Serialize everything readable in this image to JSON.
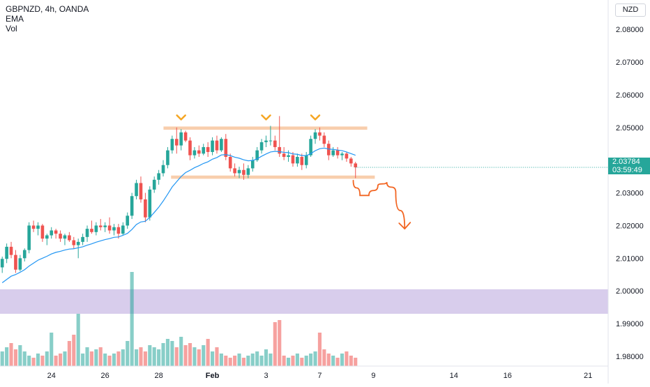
{
  "header": {
    "symbol_line": "GBPNZD, 4h, OANDA",
    "indicator_1": "EMA",
    "indicator_2": "Vol",
    "currency_label": "NZD"
  },
  "price_badge": {
    "price": "2.03784",
    "countdown": "03:59:49"
  },
  "colors": {
    "bull": "#26a69a",
    "bear": "#ef5350",
    "ema": "#2196f3",
    "zone": "#f7c59f",
    "purple_zone": "#d1c4e9",
    "marker": "#f5a623",
    "arrow": "#f26522"
  },
  "chart_data": {
    "type": "candlestick",
    "symbol": "GBPNZD",
    "timeframe": "4h",
    "source": "OANDA",
    "ylim": [
      1.977,
      2.089
    ],
    "y_ticks": [
      "2.08000",
      "2.07000",
      "2.06000",
      "2.05000",
      "2.04000",
      "2.03000",
      "2.02000",
      "2.01000",
      "2.00000",
      "1.99000",
      "1.98000"
    ],
    "x_ticks": [
      {
        "label": "24",
        "bar": 11
      },
      {
        "label": "26",
        "bar": 23
      },
      {
        "label": "28",
        "bar": 35
      },
      {
        "label": "Feb",
        "bar": 47
      },
      {
        "label": "3",
        "bar": 59
      },
      {
        "label": "7",
        "bar": 71
      },
      {
        "label": "9",
        "bar": 83
      },
      {
        "label": "14",
        "bar": 101
      },
      {
        "label": "16",
        "bar": 113
      },
      {
        "label": "21",
        "bar": 131
      }
    ],
    "total_slots": 136,
    "candles": [
      [
        2.0072,
        2.0105,
        2.0055,
        2.0098
      ],
      [
        2.0098,
        2.0145,
        2.0085,
        2.0135
      ],
      [
        2.0135,
        2.015,
        2.01,
        2.011
      ],
      [
        2.011,
        2.0125,
        2.0055,
        2.0065
      ],
      [
        2.0065,
        2.011,
        2.006,
        2.01
      ],
      [
        2.01,
        2.013,
        2.009,
        2.0125
      ],
      [
        2.0125,
        2.021,
        2.0115,
        2.02
      ],
      [
        2.02,
        2.0215,
        2.018,
        2.019
      ],
      [
        2.019,
        2.021,
        2.017,
        2.02
      ],
      [
        2.02,
        2.0205,
        2.015,
        2.016
      ],
      [
        2.016,
        2.0175,
        2.014,
        2.017
      ],
      [
        2.017,
        2.0195,
        2.016,
        2.0185
      ],
      [
        2.0185,
        2.019,
        2.016,
        2.0175
      ],
      [
        2.0175,
        2.0185,
        2.015,
        2.016
      ],
      [
        2.016,
        2.0175,
        2.014,
        2.017
      ],
      [
        2.017,
        2.018,
        2.015,
        2.0155
      ],
      [
        2.0155,
        2.0165,
        2.013,
        2.014
      ],
      [
        2.014,
        2.016,
        2.01,
        2.015
      ],
      [
        2.015,
        2.0175,
        2.014,
        2.0165
      ],
      [
        2.0165,
        2.02,
        2.015,
        2.019
      ],
      [
        2.019,
        2.0215,
        2.0175,
        2.018
      ],
      [
        2.018,
        2.021,
        2.017,
        2.02
      ],
      [
        2.02,
        2.022,
        2.0185,
        2.0195
      ],
      [
        2.0195,
        2.021,
        2.018,
        2.02
      ],
      [
        2.02,
        2.0225,
        2.0175,
        2.0185
      ],
      [
        2.0185,
        2.0205,
        2.017,
        2.0195
      ],
      [
        2.0195,
        2.0205,
        2.016,
        2.0175
      ],
      [
        2.0175,
        2.021,
        2.017,
        2.02
      ],
      [
        2.02,
        2.024,
        2.019,
        2.023
      ],
      [
        2.023,
        2.03,
        2.022,
        2.029
      ],
      [
        2.029,
        2.034,
        2.028,
        2.033
      ],
      [
        2.033,
        2.035,
        2.027,
        2.028
      ],
      [
        2.028,
        2.03,
        2.021,
        2.0225
      ],
      [
        2.0225,
        2.032,
        2.0215,
        2.031
      ],
      [
        2.031,
        2.035,
        2.03,
        2.034
      ],
      [
        2.034,
        2.037,
        2.0325,
        2.036
      ],
      [
        2.036,
        2.04,
        2.035,
        2.0385
      ],
      [
        2.0385,
        2.044,
        2.0375,
        2.043
      ],
      [
        2.043,
        2.0475,
        2.042,
        2.0465
      ],
      [
        2.0465,
        2.05,
        2.042,
        2.0445
      ],
      [
        2.0445,
        2.0495,
        2.043,
        2.0485
      ],
      [
        2.0485,
        2.049,
        2.0455,
        2.046
      ],
      [
        2.046,
        2.047,
        2.04,
        2.0415
      ],
      [
        2.0415,
        2.044,
        2.0405,
        2.043
      ],
      [
        2.043,
        2.0445,
        2.041,
        2.042
      ],
      [
        2.042,
        2.045,
        2.0415,
        2.044
      ],
      [
        2.044,
        2.0455,
        2.041,
        2.0425
      ],
      [
        2.0425,
        2.047,
        2.0415,
        2.046
      ],
      [
        2.046,
        2.0475,
        2.042,
        2.043
      ],
      [
        2.043,
        2.047,
        2.0425,
        2.0465
      ],
      [
        2.0465,
        2.048,
        2.04,
        2.041
      ],
      [
        2.041,
        2.042,
        2.0365,
        2.0375
      ],
      [
        2.0375,
        2.039,
        2.035,
        2.036
      ],
      [
        2.036,
        2.038,
        2.0345,
        2.037
      ],
      [
        2.037,
        2.039,
        2.034,
        2.0355
      ],
      [
        2.0355,
        2.0385,
        2.0345,
        2.0375
      ],
      [
        2.0375,
        2.041,
        2.0365,
        2.04
      ],
      [
        2.04,
        2.044,
        2.0395,
        2.043
      ],
      [
        2.043,
        2.0465,
        2.042,
        2.0455
      ],
      [
        2.0455,
        2.0475,
        2.044,
        2.046
      ],
      [
        2.046,
        2.0505,
        2.0445,
        2.046
      ],
      [
        2.046,
        2.0475,
        2.043,
        2.044
      ],
      [
        2.044,
        2.0535,
        2.041,
        2.042
      ],
      [
        2.042,
        2.044,
        2.04,
        2.041
      ],
      [
        2.041,
        2.043,
        2.0395,
        2.0415
      ],
      [
        2.0415,
        2.0425,
        2.038,
        2.039
      ],
      [
        2.039,
        2.042,
        2.038,
        2.041
      ],
      [
        2.041,
        2.042,
        2.037,
        2.0385
      ],
      [
        2.0385,
        2.0425,
        2.0375,
        2.0415
      ],
      [
        2.0415,
        2.0475,
        2.041,
        2.0465
      ],
      [
        2.0465,
        2.0495,
        2.045,
        2.0485
      ],
      [
        2.0485,
        2.05,
        2.046,
        2.0475
      ],
      [
        2.0475,
        2.0485,
        2.044,
        2.045
      ],
      [
        2.045,
        2.046,
        2.04,
        2.0415
      ],
      [
        2.0415,
        2.044,
        2.041,
        2.043
      ],
      [
        2.043,
        2.044,
        2.0405,
        2.0415
      ],
      [
        2.0415,
        2.0425,
        2.04,
        2.042
      ],
      [
        2.042,
        2.0425,
        2.0395,
        2.0405
      ],
      [
        2.0405,
        2.041,
        2.038,
        2.039
      ],
      [
        2.039,
        2.0395,
        2.0345,
        2.0378
      ]
    ],
    "ema": [
      2.0025,
      2.0035,
      2.0045,
      2.005,
      2.0057,
      2.0065,
      2.0076,
      2.0085,
      2.0094,
      2.01,
      2.0106,
      2.0113,
      2.0118,
      2.0121,
      2.0125,
      2.0128,
      2.0129,
      2.0132,
      2.0135,
      2.014,
      2.0144,
      2.0149,
      2.0153,
      2.0157,
      2.016,
      2.0164,
      2.0165,
      2.017,
      2.0176,
      2.0188,
      2.0203,
      2.0211,
      2.0213,
      2.0225,
      2.024,
      2.0256,
      2.0275,
      2.0296,
      2.0318,
      2.0334,
      2.035,
      2.0362,
      2.0369,
      2.0377,
      2.0383,
      2.039,
      2.0395,
      2.0403,
      2.0408,
      2.0416,
      2.0417,
      2.0414,
      2.0409,
      2.0406,
      2.0401,
      2.0398,
      2.0399,
      2.0404,
      2.0412,
      2.0419,
      2.0425,
      2.0427,
      2.0426,
      2.0424,
      2.0423,
      2.0419,
      2.0418,
      2.0414,
      2.0414,
      2.042,
      2.0429,
      2.0435,
      2.0437,
      2.0434,
      2.0433,
      2.0431,
      2.0429,
      2.0425,
      2.042,
      2.0415
    ],
    "volume": [
      0.07,
      0.09,
      0.11,
      0.08,
      0.1,
      0.07,
      0.05,
      0.04,
      0.06,
      0.05,
      0.07,
      0.16,
      0.05,
      0.06,
      0.07,
      0.12,
      0.15,
      0.25,
      0.06,
      0.09,
      0.07,
      0.08,
      0.09,
      0.06,
      0.05,
      0.06,
      0.07,
      0.08,
      0.12,
      0.45,
      0.08,
      0.09,
      0.07,
      0.1,
      0.09,
      0.08,
      0.11,
      0.13,
      0.12,
      0.09,
      0.14,
      0.1,
      0.11,
      0.09,
      0.08,
      0.1,
      0.13,
      0.07,
      0.09,
      0.06,
      0.05,
      0.04,
      0.05,
      0.06,
      0.04,
      0.05,
      0.06,
      0.07,
      0.05,
      0.08,
      0.06,
      0.21,
      0.22,
      0.05,
      0.04,
      0.05,
      0.06,
      0.04,
      0.05,
      0.06,
      0.07,
      0.16,
      0.08,
      0.06,
      0.05,
      0.04,
      0.06,
      0.07,
      0.05,
      0.04
    ],
    "annotations": {
      "resistance_zone": [
        2.0493,
        2.0503
      ],
      "support_zone": [
        2.0343,
        2.0353
      ],
      "purple_band": [
        1.993,
        2.0005
      ],
      "top_markers_bars": [
        40,
        59,
        70
      ],
      "projected_path": [
        [
          78.5,
          2.0338
        ],
        [
          80,
          2.0292
        ],
        [
          82,
          2.0292
        ],
        [
          84,
          2.0322
        ],
        [
          86,
          2.0333
        ],
        [
          88,
          2.0302
        ],
        [
          90,
          2.019
        ]
      ]
    }
  }
}
